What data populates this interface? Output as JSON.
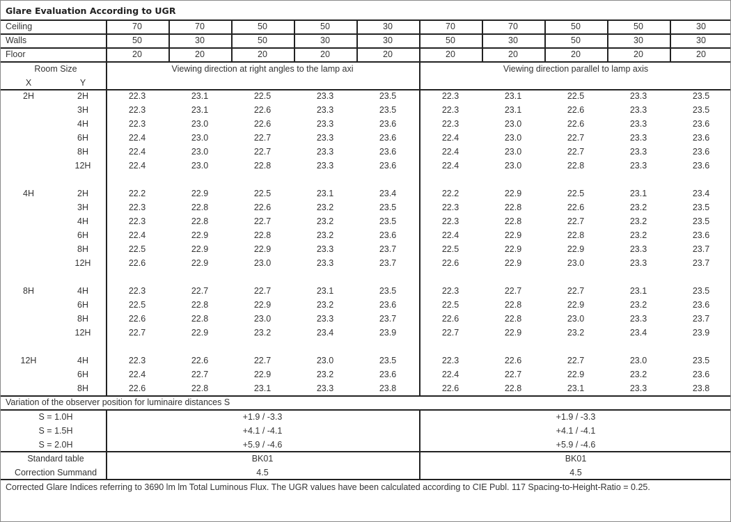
{
  "title": "Glare Evaluation According to UGR",
  "reflectances": [
    {
      "label": "Ceiling",
      "values": [
        "70",
        "70",
        "50",
        "50",
        "30",
        "70",
        "70",
        "50",
        "50",
        "30"
      ]
    },
    {
      "label": "Walls",
      "values": [
        "50",
        "30",
        "50",
        "30",
        "30",
        "50",
        "30",
        "50",
        "30",
        "30"
      ]
    },
    {
      "label": "Floor",
      "values": [
        "20",
        "20",
        "20",
        "20",
        "20",
        "20",
        "20",
        "20",
        "20",
        "20"
      ]
    }
  ],
  "room_size_label": "Room Size",
  "x_label": "X",
  "y_label": "Y",
  "direction_right_angles": "Viewing direction at right angles to the lamp axi",
  "direction_parallel": "Viewing direction parallel to lamp axis",
  "groups": [
    {
      "x": "2H",
      "rows": [
        {
          "y": "2H",
          "right": [
            "22.3",
            "23.1",
            "22.5",
            "23.3",
            "23.5"
          ],
          "parallel": [
            "22.3",
            "23.1",
            "22.5",
            "23.3",
            "23.5"
          ]
        },
        {
          "y": "3H",
          "right": [
            "22.3",
            "23.1",
            "22.6",
            "23.3",
            "23.5"
          ],
          "parallel": [
            "22.3",
            "23.1",
            "22.6",
            "23.3",
            "23.5"
          ]
        },
        {
          "y": "4H",
          "right": [
            "22.3",
            "23.0",
            "22.6",
            "23.3",
            "23.6"
          ],
          "parallel": [
            "22.3",
            "23.0",
            "22.6",
            "23.3",
            "23.6"
          ]
        },
        {
          "y": "6H",
          "right": [
            "22.4",
            "23.0",
            "22.7",
            "23.3",
            "23.6"
          ],
          "parallel": [
            "22.4",
            "23.0",
            "22.7",
            "23.3",
            "23.6"
          ]
        },
        {
          "y": "8H",
          "right": [
            "22.4",
            "23.0",
            "22.7",
            "23.3",
            "23.6"
          ],
          "parallel": [
            "22.4",
            "23.0",
            "22.7",
            "23.3",
            "23.6"
          ]
        },
        {
          "y": "12H",
          "right": [
            "22.4",
            "23.0",
            "22.8",
            "23.3",
            "23.6"
          ],
          "parallel": [
            "22.4",
            "23.0",
            "22.8",
            "23.3",
            "23.6"
          ]
        }
      ]
    },
    {
      "x": "4H",
      "rows": [
        {
          "y": "2H",
          "right": [
            "22.2",
            "22.9",
            "22.5",
            "23.1",
            "23.4"
          ],
          "parallel": [
            "22.2",
            "22.9",
            "22.5",
            "23.1",
            "23.4"
          ]
        },
        {
          "y": "3H",
          "right": [
            "22.3",
            "22.8",
            "22.6",
            "23.2",
            "23.5"
          ],
          "parallel": [
            "22.3",
            "22.8",
            "22.6",
            "23.2",
            "23.5"
          ]
        },
        {
          "y": "4H",
          "right": [
            "22.3",
            "22.8",
            "22.7",
            "23.2",
            "23.5"
          ],
          "parallel": [
            "22.3",
            "22.8",
            "22.7",
            "23.2",
            "23.5"
          ]
        },
        {
          "y": "6H",
          "right": [
            "22.4",
            "22.9",
            "22.8",
            "23.2",
            "23.6"
          ],
          "parallel": [
            "22.4",
            "22.9",
            "22.8",
            "23.2",
            "23.6"
          ]
        },
        {
          "y": "8H",
          "right": [
            "22.5",
            "22.9",
            "22.9",
            "23.3",
            "23.7"
          ],
          "parallel": [
            "22.5",
            "22.9",
            "22.9",
            "23.3",
            "23.7"
          ]
        },
        {
          "y": "12H",
          "right": [
            "22.6",
            "22.9",
            "23.0",
            "23.3",
            "23.7"
          ],
          "parallel": [
            "22.6",
            "22.9",
            "23.0",
            "23.3",
            "23.7"
          ]
        }
      ]
    },
    {
      "x": "8H",
      "rows": [
        {
          "y": "4H",
          "right": [
            "22.3",
            "22.7",
            "22.7",
            "23.1",
            "23.5"
          ],
          "parallel": [
            "22.3",
            "22.7",
            "22.7",
            "23.1",
            "23.5"
          ]
        },
        {
          "y": "6H",
          "right": [
            "22.5",
            "22.8",
            "22.9",
            "23.2",
            "23.6"
          ],
          "parallel": [
            "22.5",
            "22.8",
            "22.9",
            "23.2",
            "23.6"
          ]
        },
        {
          "y": "8H",
          "right": [
            "22.6",
            "22.8",
            "23.0",
            "23.3",
            "23.7"
          ],
          "parallel": [
            "22.6",
            "22.8",
            "23.0",
            "23.3",
            "23.7"
          ]
        },
        {
          "y": "12H",
          "right": [
            "22.7",
            "22.9",
            "23.2",
            "23.4",
            "23.9"
          ],
          "parallel": [
            "22.7",
            "22.9",
            "23.2",
            "23.4",
            "23.9"
          ]
        }
      ]
    },
    {
      "x": "12H",
      "rows": [
        {
          "y": "4H",
          "right": [
            "22.3",
            "22.6",
            "22.7",
            "23.0",
            "23.5"
          ],
          "parallel": [
            "22.3",
            "22.6",
            "22.7",
            "23.0",
            "23.5"
          ]
        },
        {
          "y": "6H",
          "right": [
            "22.4",
            "22.7",
            "22.9",
            "23.2",
            "23.6"
          ],
          "parallel": [
            "22.4",
            "22.7",
            "22.9",
            "23.2",
            "23.6"
          ]
        },
        {
          "y": "8H",
          "right": [
            "22.6",
            "22.8",
            "23.1",
            "23.3",
            "23.8"
          ],
          "parallel": [
            "22.6",
            "22.8",
            "23.1",
            "23.3",
            "23.8"
          ]
        }
      ]
    }
  ],
  "variation_title": "Variation of the observer position for luminaire distances S",
  "variations": [
    {
      "label": "S = 1.0H",
      "right": "+1.9 / -3.3",
      "parallel": "+1.9 / -3.3"
    },
    {
      "label": "S = 1.5H",
      "right": "+4.1 / -4.1",
      "parallel": "+4.1 / -4.1"
    },
    {
      "label": "S = 2.0H",
      "right": "+5.9 / -4.6",
      "parallel": "+5.9 / -4.6"
    }
  ],
  "standard_table": {
    "label": "Standard table",
    "right": "BK01",
    "parallel": "BK01"
  },
  "correction_summand": {
    "label": "Correction Summand",
    "right": "4.5",
    "parallel": "4.5"
  },
  "footnote": "Corrected Glare Indices referring to 3690 lm lm Total Luminous Flux. The UGR values have been calculated according to CIE Publ. 117    Spacing-to-Height-Ratio = 0.25."
}
